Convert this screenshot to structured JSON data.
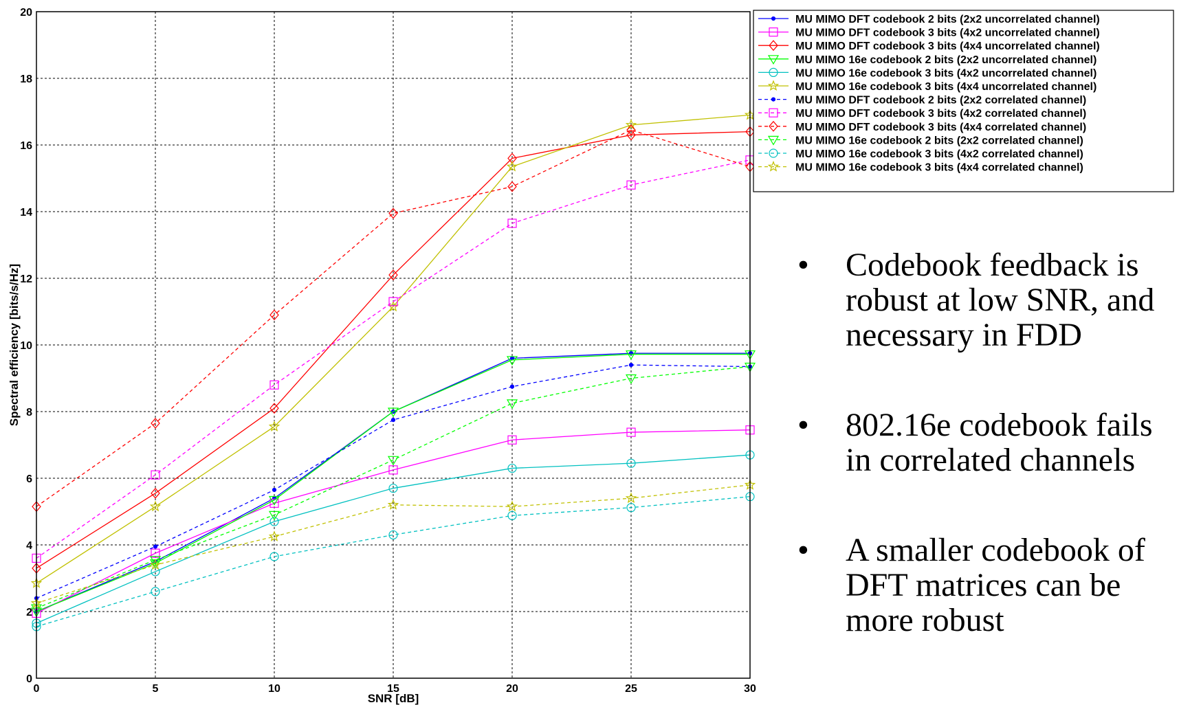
{
  "chart_data": {
    "type": "line",
    "title": "",
    "xlabel": "SNR [dB]",
    "ylabel": "Spectral efficiency [bits/s/Hz]",
    "xlim": [
      0,
      30
    ],
    "ylim": [
      0,
      20
    ],
    "xticks": [
      0,
      5,
      10,
      15,
      20,
      25,
      30
    ],
    "yticks": [
      0,
      2,
      4,
      6,
      8,
      10,
      12,
      14,
      16,
      18,
      20
    ],
    "grid": true,
    "legend_position": "top-right",
    "x": [
      0,
      5,
      10,
      15,
      20,
      25,
      30
    ],
    "series": [
      {
        "name": "MU MIMO DFT codebook 2 bits (2x2 uncorrelated channel)",
        "color": "#0000ff",
        "marker": "point",
        "dashed": false,
        "values": [
          2.0,
          3.5,
          5.4,
          8.0,
          9.6,
          9.75,
          9.75
        ]
      },
      {
        "name": "MU MIMO DFT codebook 3 bits (4x2 uncorrelated channel)",
        "color": "#ff00ff",
        "marker": "square",
        "dashed": false,
        "values": [
          1.95,
          3.75,
          5.25,
          6.25,
          7.15,
          7.38,
          7.45
        ]
      },
      {
        "name": "MU MIMO DFT codebook 3 bits (4x4 uncorrelated channel)",
        "color": "#ff0000",
        "marker": "diamond",
        "dashed": false,
        "values": [
          3.3,
          5.55,
          8.1,
          12.1,
          15.6,
          16.3,
          16.4
        ]
      },
      {
        "name": "MU MIMO 16e codebook 2 bits (2x2 uncorrelated channel)",
        "color": "#00ff00",
        "marker": "triangle-down",
        "dashed": false,
        "values": [
          2.0,
          3.45,
          5.35,
          8.0,
          9.55,
          9.72,
          9.72
        ]
      },
      {
        "name": "MU MIMO 16e codebook 3 bits (4x2 uncorrelated channel)",
        "color": "#00c0c0",
        "marker": "circle",
        "dashed": false,
        "values": [
          1.65,
          3.2,
          4.7,
          5.7,
          6.3,
          6.45,
          6.7
        ]
      },
      {
        "name": "MU MIMO 16e codebook 3 bits (4x4 uncorrelated channel)",
        "color": "#c0c000",
        "marker": "star",
        "dashed": false,
        "values": [
          2.85,
          5.15,
          7.55,
          11.15,
          15.35,
          16.6,
          16.9
        ]
      },
      {
        "name": "MU MIMO DFT codebook 2 bits (2x2 correlated channel)",
        "color": "#0000ff",
        "marker": "point",
        "dashed": true,
        "values": [
          2.4,
          3.95,
          5.65,
          7.75,
          8.75,
          9.4,
          9.35
        ]
      },
      {
        "name": "MU MIMO DFT codebook 3 bits (4x2 correlated channel)",
        "color": "#ff00ff",
        "marker": "square",
        "dashed": true,
        "values": [
          3.6,
          6.1,
          8.8,
          11.3,
          13.65,
          14.8,
          15.55
        ]
      },
      {
        "name": "MU MIMO DFT codebook 3 bits (4x4 correlated channel)",
        "color": "#ff0000",
        "marker": "diamond",
        "dashed": true,
        "values": [
          5.15,
          7.65,
          10.9,
          13.95,
          14.75,
          16.45,
          15.35
        ]
      },
      {
        "name": "MU MIMO 16e codebook 2 bits (2x2 correlated channel)",
        "color": "#00ff00",
        "marker": "triangle-down",
        "dashed": true,
        "values": [
          2.1,
          3.55,
          4.9,
          6.55,
          8.25,
          9.0,
          9.35
        ]
      },
      {
        "name": "MU MIMO 16e codebook 3 bits (4x2 correlated channel)",
        "color": "#00c0c0",
        "marker": "circle",
        "dashed": true,
        "values": [
          1.55,
          2.6,
          3.65,
          4.3,
          4.88,
          5.12,
          5.45
        ]
      },
      {
        "name": "MU MIMO 16e codebook 3 bits (4x4 correlated channel)",
        "color": "#c0c000",
        "marker": "star",
        "dashed": true,
        "values": [
          2.25,
          3.4,
          4.25,
          5.2,
          5.15,
          5.4,
          5.8
        ]
      }
    ]
  },
  "bullets": [
    "Codebook feedback is robust at low SNR, and necessary in FDD",
    "802.16e codebook fails in correlated channels",
    "A smaller codebook of DFT matrices can be more robust"
  ],
  "bullet_glyph": "•"
}
